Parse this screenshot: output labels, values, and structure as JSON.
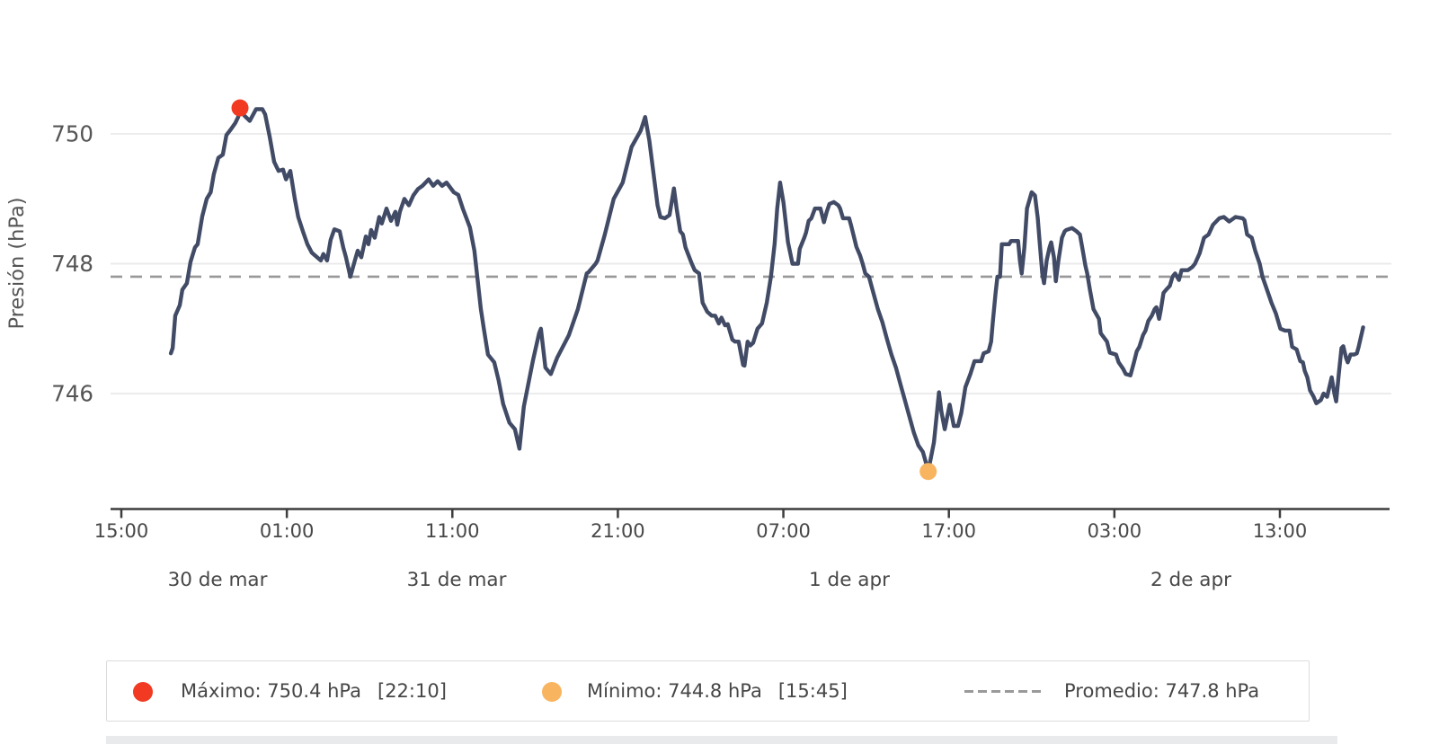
{
  "y_axis": {
    "title": "Presión (hPa)",
    "tick_labels": [
      "750",
      "748",
      "746"
    ],
    "tick_values": [
      750,
      748,
      746
    ]
  },
  "x_axis": {
    "tick_labels": [
      "15:00",
      "01:00",
      "11:00",
      "21:00",
      "07:00",
      "17:00",
      "03:00",
      "13:00"
    ],
    "date_labels": [
      "30 de mar",
      "31 de mar",
      "1 de apr",
      "2 de apr"
    ]
  },
  "legend": {
    "max_label": "Máximo: 750.4 hPa",
    "max_time": "[22:10]",
    "min_label": "Mínimo: 744.8 hPa",
    "min_time": "[15:45]",
    "avg_label": "Promedio: 747.8 hPa"
  },
  "chart_data": {
    "type": "line",
    "title": "",
    "xlabel": "",
    "ylabel": "Presión (hPa)",
    "ylim": [
      744.3,
      750.9
    ],
    "grid": "horizontal-only",
    "legend_position": "bottom",
    "x_unit": "hours after first axis tick (15:00, 30 de mar)",
    "x_ticks_hours": [
      0,
      10,
      20,
      30,
      40,
      50,
      60,
      70
    ],
    "average": 747.8,
    "max": {
      "value": 750.4,
      "time_label": "22:10",
      "t_hours": 7.17
    },
    "min": {
      "value": 744.8,
      "time_label": "15:45",
      "t_hours": 48.75
    },
    "colors": {
      "line": "#414b66",
      "max_marker": "#f13a21",
      "min_marker": "#f9b45f",
      "average_line": "#999999",
      "grid": "#e9e9e9",
      "axis": "#3d3d3d",
      "tick_text": "#474747",
      "axis_title_text": "#555555"
    },
    "points": [
      [
        2.99,
        746.62
      ],
      [
        3.1,
        746.7
      ],
      [
        3.26,
        747.2
      ],
      [
        3.53,
        747.36
      ],
      [
        3.69,
        747.6
      ],
      [
        3.96,
        747.7
      ],
      [
        4.18,
        748.03
      ],
      [
        4.45,
        748.25
      ],
      [
        4.61,
        748.3
      ],
      [
        4.89,
        748.73
      ],
      [
        5.16,
        749.0
      ],
      [
        5.4,
        749.1
      ],
      [
        5.59,
        749.38
      ],
      [
        5.86,
        749.63
      ],
      [
        6.13,
        749.68
      ],
      [
        6.35,
        749.98
      ],
      [
        6.62,
        750.07
      ],
      [
        6.89,
        750.17
      ],
      [
        7.06,
        750.26
      ],
      [
        7.17,
        750.4
      ],
      [
        7.44,
        750.28
      ],
      [
        7.76,
        750.2
      ],
      [
        8.14,
        750.38
      ],
      [
        8.52,
        750.38
      ],
      [
        8.69,
        750.3
      ],
      [
        8.96,
        749.96
      ],
      [
        9.23,
        749.57
      ],
      [
        9.5,
        749.43
      ],
      [
        9.77,
        749.45
      ],
      [
        9.95,
        749.3
      ],
      [
        10.21,
        749.43
      ],
      [
        10.48,
        749.0
      ],
      [
        10.69,
        748.72
      ],
      [
        10.97,
        748.5
      ],
      [
        11.24,
        748.3
      ],
      [
        11.51,
        748.17
      ],
      [
        11.83,
        748.1
      ],
      [
        12.05,
        748.05
      ],
      [
        12.21,
        748.15
      ],
      [
        12.43,
        748.05
      ],
      [
        12.65,
        748.37
      ],
      [
        12.87,
        748.53
      ],
      [
        13.19,
        748.5
      ],
      [
        13.41,
        748.25
      ],
      [
        13.57,
        748.1
      ],
      [
        13.84,
        747.8
      ],
      [
        14.11,
        748.05
      ],
      [
        14.28,
        748.2
      ],
      [
        14.5,
        748.1
      ],
      [
        14.77,
        748.42
      ],
      [
        14.93,
        748.3
      ],
      [
        15.09,
        748.52
      ],
      [
        15.31,
        748.4
      ],
      [
        15.58,
        748.72
      ],
      [
        15.74,
        748.62
      ],
      [
        16.02,
        748.85
      ],
      [
        16.29,
        748.66
      ],
      [
        16.56,
        748.8
      ],
      [
        16.67,
        748.6
      ],
      [
        16.83,
        748.8
      ],
      [
        17.1,
        749.0
      ],
      [
        17.37,
        748.9
      ],
      [
        17.64,
        749.05
      ],
      [
        17.92,
        749.15
      ],
      [
        18.19,
        749.2
      ],
      [
        18.57,
        749.3
      ],
      [
        18.84,
        749.2
      ],
      [
        19.11,
        749.27
      ],
      [
        19.38,
        749.2
      ],
      [
        19.65,
        749.25
      ],
      [
        20.09,
        749.1
      ],
      [
        20.36,
        749.06
      ],
      [
        20.63,
        748.85
      ],
      [
        21.06,
        748.56
      ],
      [
        21.33,
        748.2
      ],
      [
        21.44,
        747.95
      ],
      [
        21.72,
        747.3
      ],
      [
        21.9,
        747.0
      ],
      [
        22.15,
        746.6
      ],
      [
        22.53,
        746.48
      ],
      [
        22.8,
        746.2
      ],
      [
        23.07,
        745.84
      ],
      [
        23.45,
        745.55
      ],
      [
        23.78,
        745.45
      ],
      [
        24.05,
        745.15
      ],
      [
        24.32,
        745.8
      ],
      [
        24.86,
        746.5
      ],
      [
        25.24,
        746.93
      ],
      [
        25.35,
        747.0
      ],
      [
        25.62,
        746.4
      ],
      [
        25.95,
        746.3
      ],
      [
        26.33,
        746.55
      ],
      [
        27.04,
        746.9
      ],
      [
        27.58,
        747.3
      ],
      [
        28.12,
        747.85
      ],
      [
        28.23,
        747.87
      ],
      [
        28.66,
        748.0
      ],
      [
        28.77,
        748.05
      ],
      [
        29.21,
        748.45
      ],
      [
        29.75,
        749.0
      ],
      [
        30.29,
        749.25
      ],
      [
        30.83,
        749.8
      ],
      [
        31.38,
        750.05
      ],
      [
        31.65,
        750.26
      ],
      [
        31.9,
        749.9
      ],
      [
        32.15,
        749.4
      ],
      [
        32.4,
        748.9
      ],
      [
        32.57,
        748.72
      ],
      [
        32.84,
        748.7
      ],
      [
        33.12,
        748.75
      ],
      [
        33.39,
        749.16
      ],
      [
        33.55,
        748.85
      ],
      [
        33.77,
        748.5
      ],
      [
        33.93,
        748.45
      ],
      [
        34.09,
        748.25
      ],
      [
        34.47,
        748.0
      ],
      [
        34.64,
        747.9
      ],
      [
        34.91,
        747.85
      ],
      [
        35.12,
        747.4
      ],
      [
        35.4,
        747.26
      ],
      [
        35.67,
        747.2
      ],
      [
        35.88,
        747.2
      ],
      [
        36.1,
        747.08
      ],
      [
        36.26,
        747.17
      ],
      [
        36.48,
        747.05
      ],
      [
        36.64,
        747.07
      ],
      [
        36.92,
        746.83
      ],
      [
        37.08,
        746.8
      ],
      [
        37.3,
        746.8
      ],
      [
        37.57,
        746.44
      ],
      [
        37.65,
        746.43
      ],
      [
        37.84,
        746.8
      ],
      [
        38.0,
        746.74
      ],
      [
        38.17,
        746.78
      ],
      [
        38.44,
        747.0
      ],
      [
        38.71,
        747.08
      ],
      [
        39.0,
        747.4
      ],
      [
        39.25,
        747.8
      ],
      [
        39.47,
        748.3
      ],
      [
        39.63,
        748.85
      ],
      [
        39.8,
        749.25
      ],
      [
        40.0,
        748.95
      ],
      [
        40.28,
        748.33
      ],
      [
        40.55,
        748.0
      ],
      [
        40.88,
        748.0
      ],
      [
        40.99,
        748.23
      ],
      [
        41.26,
        748.4
      ],
      [
        41.37,
        748.48
      ],
      [
        41.53,
        748.66
      ],
      [
        41.69,
        748.7
      ],
      [
        41.91,
        748.85
      ],
      [
        42.24,
        748.85
      ],
      [
        42.45,
        748.64
      ],
      [
        42.62,
        748.8
      ],
      [
        42.78,
        748.92
      ],
      [
        43.05,
        748.95
      ],
      [
        43.32,
        748.9
      ],
      [
        43.43,
        748.85
      ],
      [
        43.6,
        748.7
      ],
      [
        43.97,
        748.7
      ],
      [
        44.08,
        748.6
      ],
      [
        44.25,
        748.43
      ],
      [
        44.41,
        748.26
      ],
      [
        44.63,
        748.13
      ],
      [
        44.79,
        748.0
      ],
      [
        44.95,
        747.85
      ],
      [
        45.17,
        747.8
      ],
      [
        45.44,
        747.55
      ],
      [
        45.71,
        747.3
      ],
      [
        45.98,
        747.1
      ],
      [
        46.25,
        746.85
      ],
      [
        46.53,
        746.6
      ],
      [
        46.8,
        746.4
      ],
      [
        47.07,
        746.15
      ],
      [
        47.34,
        745.9
      ],
      [
        47.61,
        745.65
      ],
      [
        47.88,
        745.4
      ],
      [
        48.16,
        745.2
      ],
      [
        48.43,
        745.1
      ],
      [
        48.6,
        744.95
      ],
      [
        48.75,
        744.8
      ],
      [
        49.1,
        745.25
      ],
      [
        49.4,
        746.02
      ],
      [
        49.55,
        745.72
      ],
      [
        49.75,
        745.45
      ],
      [
        50.05,
        745.83
      ],
      [
        50.3,
        745.5
      ],
      [
        50.55,
        745.5
      ],
      [
        50.75,
        745.7
      ],
      [
        51.0,
        746.1
      ],
      [
        51.3,
        746.3
      ],
      [
        51.55,
        746.5
      ],
      [
        51.95,
        746.5
      ],
      [
        52.1,
        746.62
      ],
      [
        52.4,
        746.65
      ],
      [
        52.55,
        746.8
      ],
      [
        52.66,
        747.12
      ],
      [
        52.82,
        747.54
      ],
      [
        52.93,
        747.8
      ],
      [
        53.09,
        747.8
      ],
      [
        53.2,
        748.3
      ],
      [
        53.64,
        748.3
      ],
      [
        53.75,
        748.35
      ],
      [
        54.18,
        748.35
      ],
      [
        54.29,
        748.05
      ],
      [
        54.4,
        747.85
      ],
      [
        54.56,
        748.25
      ],
      [
        54.72,
        748.85
      ],
      [
        55.0,
        749.1
      ],
      [
        55.2,
        749.05
      ],
      [
        55.37,
        748.7
      ],
      [
        55.48,
        748.35
      ],
      [
        55.64,
        747.85
      ],
      [
        55.75,
        747.7
      ],
      [
        55.91,
        748.05
      ],
      [
        56.08,
        748.25
      ],
      [
        56.18,
        748.33
      ],
      [
        56.35,
        748.1
      ],
      [
        56.46,
        747.73
      ],
      [
        56.62,
        748.05
      ],
      [
        56.83,
        748.4
      ],
      [
        57.0,
        748.5
      ],
      [
        57.1,
        748.52
      ],
      [
        57.44,
        748.55
      ],
      [
        57.71,
        748.5
      ],
      [
        57.92,
        748.45
      ],
      [
        58.09,
        748.2
      ],
      [
        58.25,
        747.97
      ],
      [
        58.36,
        747.85
      ],
      [
        58.52,
        747.6
      ],
      [
        58.74,
        747.3
      ],
      [
        59.07,
        747.15
      ],
      [
        59.17,
        746.93
      ],
      [
        59.55,
        746.8
      ],
      [
        59.72,
        746.63
      ],
      [
        60.1,
        746.6
      ],
      [
        60.26,
        746.48
      ],
      [
        60.53,
        746.38
      ],
      [
        60.69,
        746.3
      ],
      [
        60.97,
        746.28
      ],
      [
        61.18,
        746.48
      ],
      [
        61.35,
        746.65
      ],
      [
        61.51,
        746.72
      ],
      [
        61.73,
        746.9
      ],
      [
        61.88,
        746.97
      ],
      [
        62.05,
        747.12
      ],
      [
        62.26,
        747.2
      ],
      [
        62.43,
        747.3
      ],
      [
        62.54,
        747.33
      ],
      [
        62.7,
        747.15
      ],
      [
        62.8,
        747.28
      ],
      [
        62.97,
        747.55
      ],
      [
        63.13,
        747.6
      ],
      [
        63.35,
        747.66
      ],
      [
        63.51,
        747.8
      ],
      [
        63.67,
        747.85
      ],
      [
        63.9,
        747.75
      ],
      [
        64.06,
        747.9
      ],
      [
        64.44,
        747.9
      ],
      [
        64.71,
        747.95
      ],
      [
        64.87,
        748.0
      ],
      [
        65.15,
        748.16
      ],
      [
        65.42,
        748.4
      ],
      [
        65.69,
        748.45
      ],
      [
        65.96,
        748.6
      ],
      [
        66.34,
        748.7
      ],
      [
        66.61,
        748.72
      ],
      [
        66.94,
        748.65
      ],
      [
        67.32,
        748.72
      ],
      [
        67.75,
        748.7
      ],
      [
        67.86,
        748.67
      ],
      [
        68.02,
        748.45
      ],
      [
        68.3,
        748.4
      ],
      [
        68.51,
        748.2
      ],
      [
        68.78,
        748.0
      ],
      [
        68.95,
        747.8
      ],
      [
        69.22,
        747.6
      ],
      [
        69.49,
        747.4
      ],
      [
        69.76,
        747.23
      ],
      [
        70.03,
        747.0
      ],
      [
        70.3,
        746.97
      ],
      [
        70.58,
        746.97
      ],
      [
        70.74,
        746.72
      ],
      [
        71.01,
        746.68
      ],
      [
        71.23,
        746.5
      ],
      [
        71.39,
        746.48
      ],
      [
        71.5,
        746.35
      ],
      [
        71.66,
        746.25
      ],
      [
        71.82,
        746.05
      ],
      [
        72.04,
        745.95
      ],
      [
        72.2,
        745.85
      ],
      [
        72.48,
        745.9
      ],
      [
        72.64,
        746.0
      ],
      [
        72.85,
        745.95
      ],
      [
        73.13,
        746.25
      ],
      [
        73.29,
        746.0
      ],
      [
        73.4,
        745.88
      ],
      [
        73.56,
        746.3
      ],
      [
        73.72,
        746.7
      ],
      [
        73.83,
        746.73
      ],
      [
        74.0,
        746.55
      ],
      [
        74.1,
        746.48
      ],
      [
        74.27,
        746.6
      ],
      [
        74.48,
        746.6
      ],
      [
        74.65,
        746.62
      ],
      [
        74.76,
        746.72
      ],
      [
        74.92,
        746.9
      ],
      [
        75.03,
        747.02
      ]
    ]
  }
}
